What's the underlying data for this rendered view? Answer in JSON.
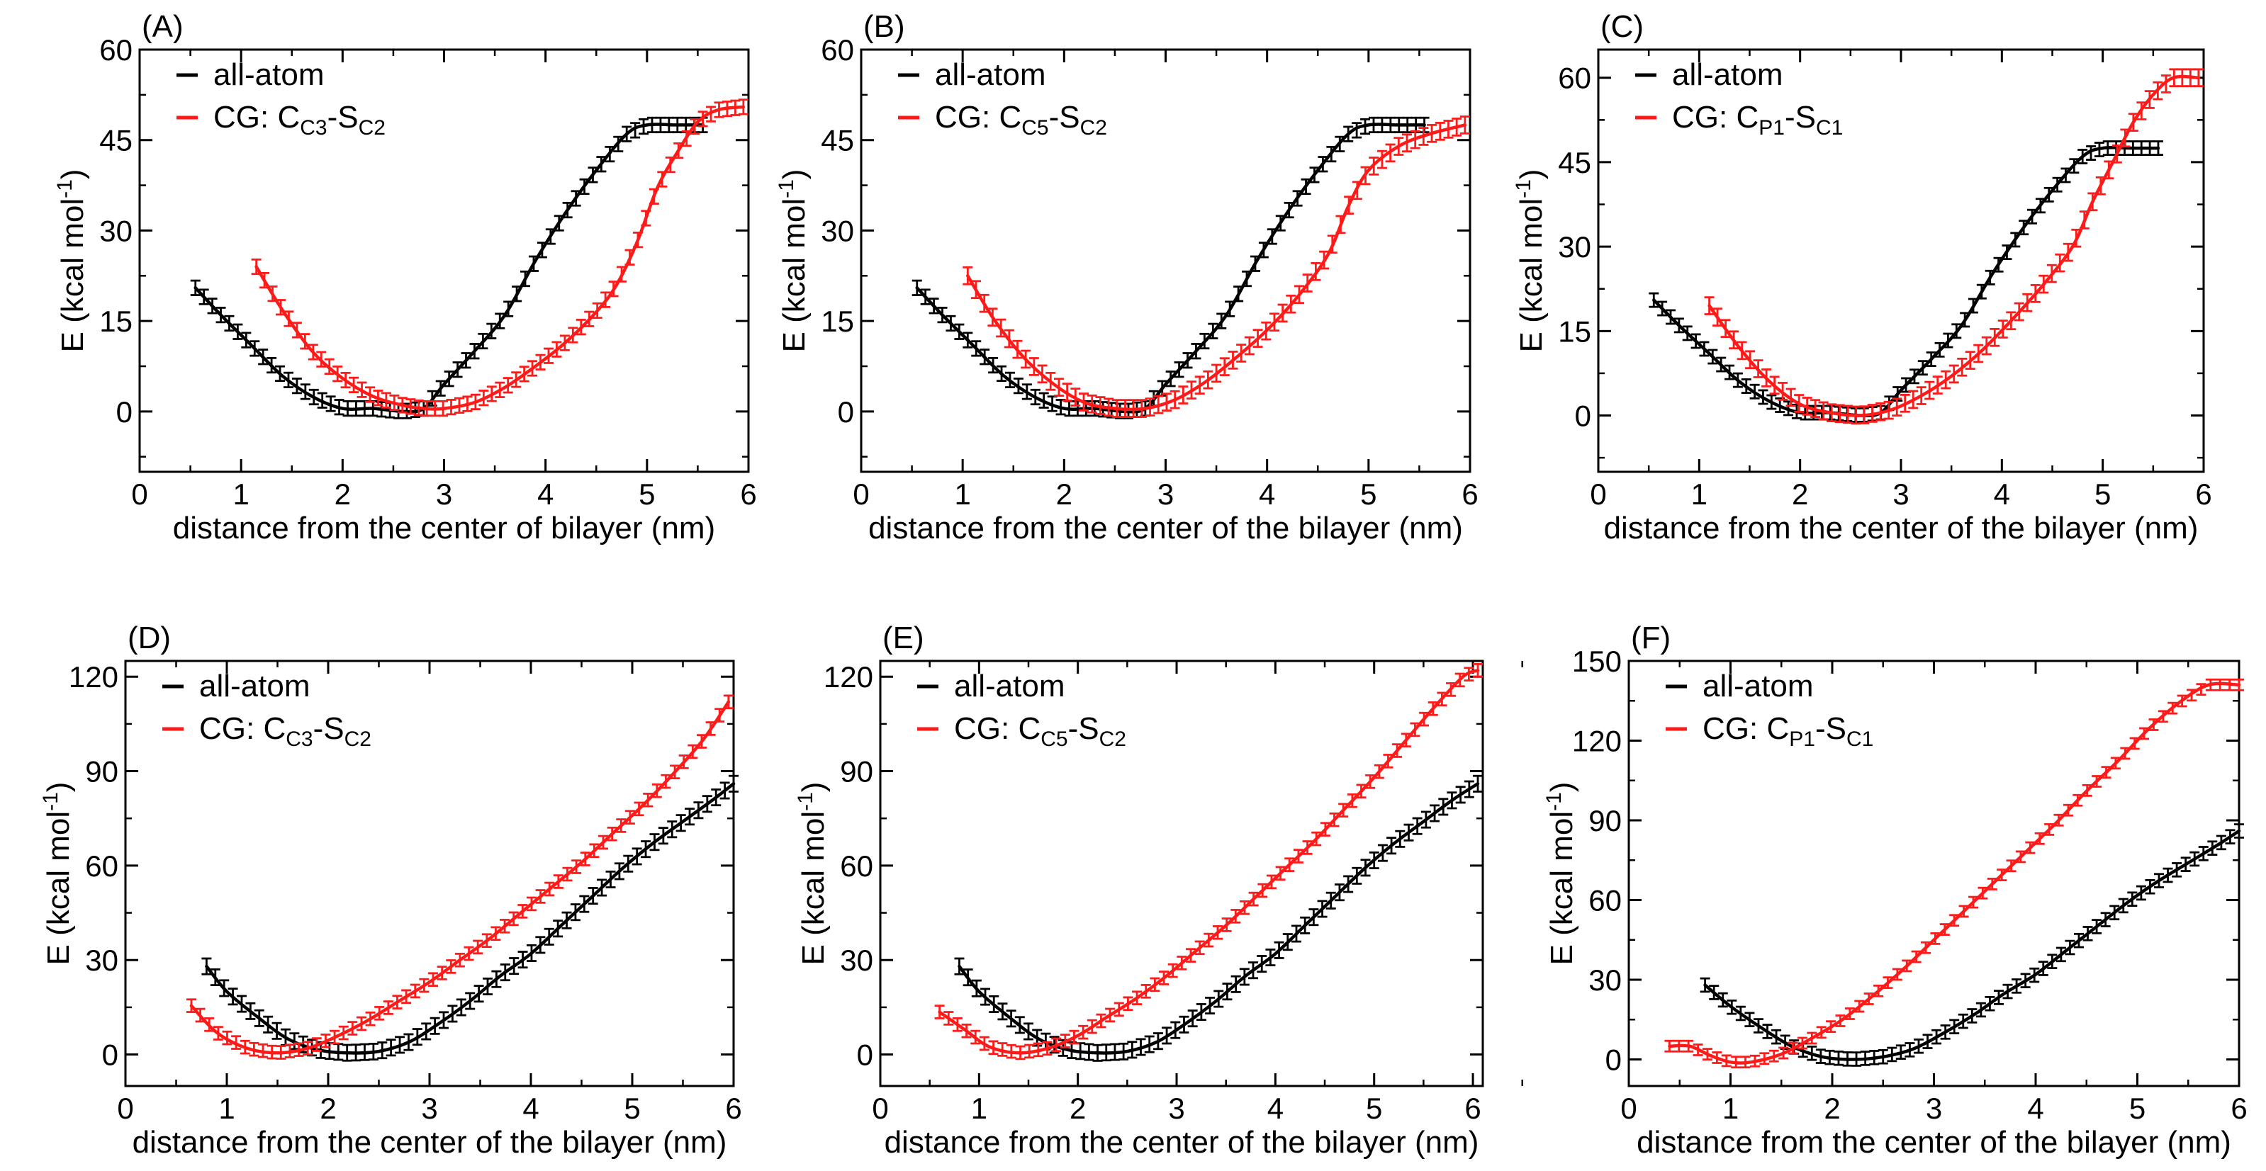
{
  "figure": {
    "colors": {
      "allatom": "#000000",
      "cg": "#ff1a1a",
      "axis": "#000000"
    }
  },
  "chart_data": [
    {
      "type": "line",
      "label": "(A)",
      "xlabel": "distance from the center of bilayer (nm)",
      "ylabel": "E (kcal mol-1)",
      "xlim": [
        0,
        6
      ],
      "ylim": [
        -10,
        60
      ],
      "xticks": [
        0,
        1,
        2,
        3,
        4,
        5,
        6
      ],
      "yticks": [
        0,
        15,
        30,
        45,
        60
      ],
      "legend": {
        "position": "top-left",
        "entries": [
          {
            "text": "all-atom",
            "sub": []
          },
          {
            "text": "CG: C",
            "sub": [
              "C3",
              "-S",
              "C2"
            ]
          }
        ]
      },
      "series": [
        {
          "name": "all-atom",
          "color": "#000000",
          "x": [
            0.55,
            0.8,
            1.1,
            1.4,
            1.7,
            2.0,
            2.3,
            2.6,
            2.8,
            3.0,
            3.3,
            3.6,
            3.9,
            4.2,
            4.5,
            4.8,
            5.0,
            5.3,
            5.55
          ],
          "y": [
            20.5,
            16,
            11,
            6,
            2.5,
            0.5,
            0.5,
            0,
            0.5,
            4.5,
            10,
            16,
            25,
            33,
            40,
            46,
            47.5,
            47.5,
            47.5
          ],
          "err": 1.2
        },
        {
          "name": "CG: CC3-SC2",
          "color": "#ff1a1a",
          "x": [
            1.15,
            1.4,
            1.7,
            2.0,
            2.3,
            2.6,
            2.8,
            3.0,
            3.3,
            3.6,
            3.9,
            4.2,
            4.5,
            4.7,
            4.9,
            5.1,
            5.3,
            5.5,
            5.7,
            5.95
          ],
          "y": [
            24,
            17,
            10,
            5.5,
            2.5,
            1,
            0.5,
            0.5,
            1.5,
            4,
            7.5,
            11.5,
            16.5,
            21,
            28,
            37,
            43,
            48,
            50,
            50.5
          ],
          "err": 1.2
        }
      ]
    },
    {
      "type": "line",
      "label": "(B)",
      "xlabel": "distance from the center of the bilayer (nm)",
      "ylabel": "E (kcal mol-1)",
      "xlim": [
        0,
        6
      ],
      "ylim": [
        -10,
        60
      ],
      "xticks": [
        0,
        1,
        2,
        3,
        4,
        5,
        6
      ],
      "yticks": [
        0,
        15,
        30,
        45,
        60
      ],
      "legend": {
        "position": "top-left",
        "entries": [
          {
            "text": "all-atom",
            "sub": []
          },
          {
            "text": "CG: C",
            "sub": [
              "C5",
              "-S",
              "C2"
            ]
          }
        ]
      },
      "series": [
        {
          "name": "all-atom",
          "color": "#000000",
          "x": [
            0.55,
            0.8,
            1.1,
            1.4,
            1.7,
            2.0,
            2.3,
            2.6,
            2.8,
            3.0,
            3.3,
            3.6,
            3.9,
            4.2,
            4.5,
            4.8,
            5.0,
            5.3,
            5.55
          ],
          "y": [
            20.5,
            16,
            11,
            6,
            2.5,
            0.5,
            0.5,
            0,
            0.5,
            4.5,
            10,
            16,
            25,
            33,
            40,
            46,
            47.5,
            47.5,
            47.5
          ],
          "err": 1.2
        },
        {
          "name": "CG: CC5-SC2",
          "color": "#ff1a1a",
          "x": [
            1.05,
            1.3,
            1.6,
            1.9,
            2.2,
            2.5,
            2.8,
            3.1,
            3.4,
            3.7,
            4.0,
            4.3,
            4.6,
            4.8,
            5.0,
            5.3,
            5.6,
            5.95
          ],
          "y": [
            22.5,
            15.5,
            9,
            4.5,
            1.5,
            0.5,
            0.5,
            2,
            5,
            9,
            13.5,
            19,
            26,
            34,
            40,
            44,
            46,
            47.5
          ],
          "err": 1.4
        }
      ]
    },
    {
      "type": "line",
      "label": "(C)",
      "xlabel": "distance from the center of the bilayer (nm)",
      "ylabel": "E (kcal mol-1)",
      "xlim": [
        0,
        6
      ],
      "ylim": [
        -10,
        65
      ],
      "xticks": [
        0,
        1,
        2,
        3,
        4,
        5,
        6
      ],
      "yticks": [
        0,
        15,
        30,
        45,
        60
      ],
      "legend": {
        "position": "top-left",
        "entries": [
          {
            "text": "all-atom",
            "sub": []
          },
          {
            "text": "CG: C",
            "sub": [
              "P1",
              "-S",
              "C1"
            ]
          }
        ]
      },
      "series": [
        {
          "name": "all-atom",
          "color": "#000000",
          "x": [
            0.55,
            0.8,
            1.1,
            1.4,
            1.7,
            2.0,
            2.3,
            2.6,
            2.8,
            3.0,
            3.3,
            3.6,
            3.9,
            4.2,
            4.5,
            4.8,
            5.0,
            5.3,
            5.55
          ],
          "y": [
            20.5,
            16,
            11,
            6,
            2.5,
            0.5,
            0.5,
            0,
            0.5,
            4.5,
            10,
            16,
            25,
            33,
            40,
            46,
            47.5,
            47.5,
            47.5
          ],
          "err": 1.2
        },
        {
          "name": "CG: CP1-SC1",
          "color": "#ff1a1a",
          "x": [
            1.1,
            1.4,
            1.7,
            2.0,
            2.3,
            2.6,
            2.9,
            3.2,
            3.5,
            3.8,
            4.1,
            4.4,
            4.7,
            4.9,
            5.1,
            5.3,
            5.5,
            5.7,
            5.95
          ],
          "y": [
            19.5,
            12,
            6,
            2,
            0.5,
            0,
            1,
            3.5,
            7,
            11.5,
            17,
            23,
            30,
            38,
            45,
            52,
            57,
            60,
            60
          ],
          "err": 1.5
        }
      ]
    },
    {
      "type": "line",
      "label": "(D)",
      "xlabel": "distance from the center of the bilayer (nm)",
      "ylabel": "E (kcal mol-1)",
      "xlim": [
        0,
        6
      ],
      "ylim": [
        -10,
        125
      ],
      "xticks": [
        0,
        1,
        2,
        3,
        4,
        5,
        6
      ],
      "yticks": [
        0,
        30,
        60,
        90,
        120
      ],
      "legend": {
        "position": "top-left",
        "entries": [
          {
            "text": "all-atom",
            "sub": []
          },
          {
            "text": "CG: C",
            "sub": [
              "C3",
              "-S",
              "C2"
            ]
          }
        ]
      },
      "series": [
        {
          "name": "all-atom",
          "color": "#000000",
          "x": [
            0.8,
            1.0,
            1.3,
            1.6,
            1.9,
            2.2,
            2.5,
            2.8,
            3.1,
            3.4,
            3.7,
            4.0,
            4.3,
            4.6,
            4.9,
            5.2,
            5.5,
            5.8,
            6.0
          ],
          "y": [
            28,
            20,
            12,
            5,
            1.5,
            0.5,
            1,
            4,
            10,
            17,
            25,
            32,
            41,
            50,
            59,
            67,
            74,
            81,
            86
          ],
          "err": 2.5
        },
        {
          "name": "CG: CC3-SC2",
          "color": "#ff1a1a",
          "x": [
            0.65,
            0.9,
            1.2,
            1.5,
            1.8,
            2.1,
            2.4,
            2.7,
            3.0,
            3.3,
            3.6,
            3.9,
            4.2,
            4.5,
            4.8,
            5.1,
            5.4,
            5.7,
            5.95
          ],
          "y": [
            15.5,
            7,
            2,
            0.5,
            2,
            6,
            11,
            17,
            23,
            30,
            37,
            45,
            53,
            61,
            70,
            79,
            89,
            100,
            112
          ],
          "err": 2
        }
      ]
    },
    {
      "type": "line",
      "label": "(E)",
      "xlabel": "distance from the center of the bilayer (nm)",
      "ylabel": "E (kcal mol-1)",
      "xlim": [
        0,
        6.1
      ],
      "ylim": [
        -10,
        125
      ],
      "xticks": [
        0,
        1,
        2,
        3,
        4,
        5,
        6
      ],
      "yticks": [
        0,
        30,
        60,
        90,
        120
      ],
      "legend": {
        "position": "top-left",
        "entries": [
          {
            "text": "all-atom",
            "sub": []
          },
          {
            "text": "CG: C",
            "sub": [
              "C5",
              "-S",
              "C2"
            ]
          }
        ]
      },
      "series": [
        {
          "name": "all-atom",
          "color": "#000000",
          "x": [
            0.8,
            1.0,
            1.3,
            1.6,
            1.9,
            2.2,
            2.5,
            2.8,
            3.1,
            3.4,
            3.7,
            4.0,
            4.3,
            4.6,
            4.9,
            5.2,
            5.5,
            5.8,
            6.05
          ],
          "y": [
            28,
            20,
            12,
            5,
            1.5,
            0.5,
            1,
            4,
            10,
            17,
            25,
            32,
            41,
            50,
            59,
            67,
            74,
            81,
            86
          ],
          "err": 2.5
        },
        {
          "name": "CG: CC5-SC2",
          "color": "#ff1a1a",
          "x": [
            0.6,
            0.85,
            1.1,
            1.4,
            1.7,
            2.0,
            2.3,
            2.6,
            2.9,
            3.2,
            3.5,
            3.8,
            4.1,
            4.4,
            4.7,
            5.0,
            5.3,
            5.6,
            5.9,
            6.05
          ],
          "y": [
            13.5,
            8,
            2.5,
            0.5,
            2,
            6,
            12,
            18,
            25,
            33,
            41,
            50,
            59,
            68,
            78,
            88,
            99,
            110,
            120,
            122
          ],
          "err": 2
        }
      ]
    },
    {
      "type": "line",
      "label": "(F)",
      "xlabel": "distance from the center of the bilayer (nm)",
      "ylabel": "E (kcal mol-1)",
      "xlim": [
        0,
        6
      ],
      "ylim": [
        -10,
        150
      ],
      "xticks": [
        0,
        1,
        2,
        3,
        4,
        5,
        6
      ],
      "yticks": [
        0,
        30,
        60,
        90,
        120,
        150
      ],
      "legend": {
        "position": "top-left",
        "entries": [
          {
            "text": "all-atom",
            "sub": []
          },
          {
            "text": "CG: C",
            "sub": [
              "P1",
              "-S",
              "C1"
            ]
          }
        ]
      },
      "series": [
        {
          "name": "all-atom",
          "color": "#000000",
          "x": [
            0.75,
            1.0,
            1.3,
            1.6,
            1.9,
            2.2,
            2.5,
            2.8,
            3.1,
            3.4,
            3.7,
            4.0,
            4.3,
            4.6,
            4.9,
            5.2,
            5.5,
            5.8,
            6.0
          ],
          "y": [
            28,
            20,
            12,
            5,
            1,
            0,
            1,
            4,
            10,
            17,
            25,
            32,
            41,
            50,
            59,
            67,
            74,
            81,
            86
          ],
          "err": 2.5
        },
        {
          "name": "CG: CP1-SC1",
          "color": "#ff1a1a",
          "x": [
            0.4,
            0.6,
            0.8,
            1.0,
            1.2,
            1.5,
            1.8,
            2.1,
            2.4,
            2.7,
            3.0,
            3.3,
            3.6,
            3.9,
            4.2,
            4.5,
            4.8,
            5.1,
            5.4,
            5.7,
            6.0
          ],
          "y": [
            5,
            5,
            1.5,
            -1,
            -1,
            2,
            8,
            15,
            24,
            34,
            45,
            56,
            67,
            78,
            89,
            101,
            112,
            124,
            134,
            141,
            141
          ],
          "err": 2
        }
      ]
    }
  ]
}
